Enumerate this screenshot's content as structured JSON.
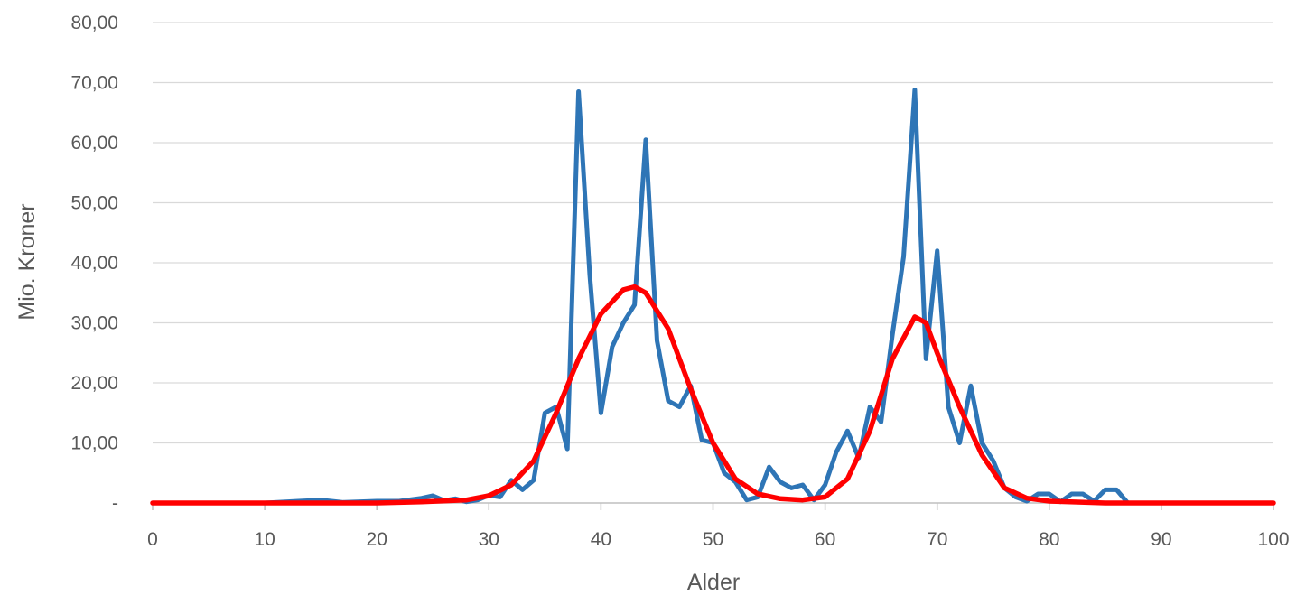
{
  "chart_data": {
    "type": "line",
    "xlabel": "Alder",
    "ylabel": "Mio. Kroner",
    "xlim": [
      0,
      100
    ],
    "ylim": [
      0,
      80
    ],
    "x_ticks": [
      0,
      10,
      20,
      30,
      40,
      50,
      60,
      70,
      80,
      90,
      100
    ],
    "x_tick_labels": [
      "0",
      "10",
      "20",
      "30",
      "40",
      "50",
      "60",
      "70",
      "80",
      "90",
      "100"
    ],
    "y_ticks": [
      0,
      10,
      20,
      30,
      40,
      50,
      60,
      70,
      80
    ],
    "y_tick_labels": [
      "-",
      "10,00",
      "20,00",
      "30,00",
      "40,00",
      "50,00",
      "60,00",
      "70,00",
      "80,00"
    ],
    "grid": "horizontal",
    "legend": "none",
    "series": [
      {
        "color": "#2e75b6",
        "points": [
          [
            0,
            0
          ],
          [
            10,
            0
          ],
          [
            13,
            0.3
          ],
          [
            15,
            0.5
          ],
          [
            17,
            0.1
          ],
          [
            20,
            0.3
          ],
          [
            22,
            0.3
          ],
          [
            24,
            0.8
          ],
          [
            25,
            1.2
          ],
          [
            26,
            0.4
          ],
          [
            27,
            0.7
          ],
          [
            28,
            0.2
          ],
          [
            29,
            0.5
          ],
          [
            30,
            1.3
          ],
          [
            31,
            1.0
          ],
          [
            32,
            3.8
          ],
          [
            33,
            2.2
          ],
          [
            34,
            3.8
          ],
          [
            35,
            15.0
          ],
          [
            36,
            16.0
          ],
          [
            37,
            9.0
          ],
          [
            38,
            68.5
          ],
          [
            39,
            38.0
          ],
          [
            40,
            15.0
          ],
          [
            41,
            26.0
          ],
          [
            42,
            30.0
          ],
          [
            43,
            33.0
          ],
          [
            44,
            60.5
          ],
          [
            45,
            27.0
          ],
          [
            46,
            17.0
          ],
          [
            47,
            16.0
          ],
          [
            48,
            19.5
          ],
          [
            49,
            10.5
          ],
          [
            50,
            10.0
          ],
          [
            51,
            5.0
          ],
          [
            52,
            3.5
          ],
          [
            53,
            0.5
          ],
          [
            54,
            1.0
          ],
          [
            55,
            6.0
          ],
          [
            56,
            3.5
          ],
          [
            57,
            2.5
          ],
          [
            58,
            3.0
          ],
          [
            59,
            0.5
          ],
          [
            60,
            3.0
          ],
          [
            61,
            8.5
          ],
          [
            62,
            12.0
          ],
          [
            63,
            7.5
          ],
          [
            64,
            16.0
          ],
          [
            65,
            13.5
          ],
          [
            66,
            28.0
          ],
          [
            67,
            41.0
          ],
          [
            68,
            68.8
          ],
          [
            69,
            24.0
          ],
          [
            70,
            42.0
          ],
          [
            71,
            16.0
          ],
          [
            72,
            10.0
          ],
          [
            73,
            19.5
          ],
          [
            74,
            10.0
          ],
          [
            75,
            7.0
          ],
          [
            76,
            2.5
          ],
          [
            77,
            1.0
          ],
          [
            78,
            0.3
          ],
          [
            79,
            1.5
          ],
          [
            80,
            1.5
          ],
          [
            81,
            0.2
          ],
          [
            82,
            1.5
          ],
          [
            83,
            1.5
          ],
          [
            84,
            0.3
          ],
          [
            85,
            2.2
          ],
          [
            86,
            2.2
          ],
          [
            87,
            0
          ],
          [
            90,
            0
          ],
          [
            100,
            0
          ]
        ]
      },
      {
        "color": "#ff0000",
        "points": [
          [
            0,
            0
          ],
          [
            20,
            0
          ],
          [
            24,
            0.2
          ],
          [
            28,
            0.5
          ],
          [
            30,
            1.2
          ],
          [
            32,
            3.0
          ],
          [
            34,
            7.0
          ],
          [
            36,
            15.0
          ],
          [
            38,
            24.0
          ],
          [
            40,
            31.5
          ],
          [
            42,
            35.5
          ],
          [
            43,
            36.0
          ],
          [
            44,
            35.0
          ],
          [
            46,
            29.0
          ],
          [
            48,
            19.0
          ],
          [
            50,
            10.0
          ],
          [
            52,
            4.0
          ],
          [
            54,
            1.5
          ],
          [
            56,
            0.7
          ],
          [
            58,
            0.5
          ],
          [
            60,
            1.0
          ],
          [
            62,
            4.0
          ],
          [
            64,
            12.0
          ],
          [
            66,
            24.0
          ],
          [
            68,
            31.0
          ],
          [
            69,
            30.0
          ],
          [
            70,
            25.0
          ],
          [
            72,
            16.0
          ],
          [
            74,
            8.0
          ],
          [
            76,
            2.5
          ],
          [
            78,
            0.8
          ],
          [
            80,
            0.3
          ],
          [
            85,
            0
          ],
          [
            100,
            0
          ]
        ]
      }
    ]
  }
}
